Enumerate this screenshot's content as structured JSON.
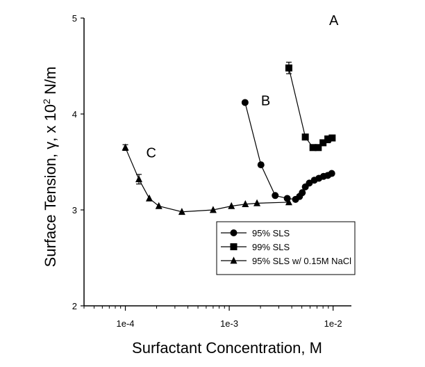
{
  "chart_data": {
    "type": "scatter",
    "xlabel": "Surfactant Concentration, M",
    "ylabel_parts": [
      "Surface Tension, γ, x 10",
      "2",
      " N/m"
    ],
    "xscale": "log",
    "xlim": [
      4e-05,
      0.015
    ],
    "ylim": [
      2,
      5
    ],
    "xticks": [
      {
        "value": 0.0001,
        "label": "1e-4"
      },
      {
        "value": 0.001,
        "label": "1e-3"
      },
      {
        "value": 0.01,
        "label": "1e-2"
      }
    ],
    "yticks": [
      {
        "value": 2,
        "label": "2"
      },
      {
        "value": 3,
        "label": "3"
      },
      {
        "value": 4,
        "label": "4"
      },
      {
        "value": 5,
        "label": "5"
      }
    ],
    "series": [
      {
        "name": "95% SLS",
        "marker": "circle",
        "curve_label": "B",
        "x": [
          0.00142,
          0.00202,
          0.00277,
          0.00362,
          0.00435,
          0.00475,
          0.00505,
          0.0054,
          0.0059,
          0.0066,
          0.0073,
          0.0081,
          0.0089,
          0.0097
        ],
        "y": [
          4.12,
          3.47,
          3.15,
          3.12,
          3.11,
          3.14,
          3.18,
          3.24,
          3.28,
          3.31,
          3.33,
          3.35,
          3.36,
          3.38
        ],
        "errors": []
      },
      {
        "name": "99% SLS",
        "marker": "square",
        "curve_label": "A",
        "x": [
          0.00375,
          0.0054,
          0.0064,
          0.0072,
          0.008,
          0.0089,
          0.0098
        ],
        "y": [
          4.48,
          3.76,
          3.65,
          3.65,
          3.7,
          3.74,
          3.75
        ],
        "errors": [
          {
            "x": 0.00375,
            "lo": 4.42,
            "hi": 4.54
          },
          {
            "x": 0.0089,
            "lo": 3.7,
            "hi": 3.77
          }
        ]
      },
      {
        "name": "95% SLS w/ 0.15M NaCl",
        "marker": "triangle",
        "curve_label": "C",
        "x": [
          0.0001,
          0.000135,
          0.00017,
          0.00021,
          0.00035,
          0.0007,
          0.00105,
          0.00143,
          0.00185,
          0.00375
        ],
        "y": [
          3.65,
          3.32,
          3.12,
          3.04,
          2.98,
          3.0,
          3.04,
          3.06,
          3.07,
          3.08
        ],
        "errors": [
          {
            "x": 0.0001,
            "lo": 3.62,
            "hi": 3.68
          },
          {
            "x": 0.000135,
            "lo": 3.27,
            "hi": 3.37
          }
        ]
      }
    ],
    "legend_position": "lower-right",
    "grid": false
  }
}
